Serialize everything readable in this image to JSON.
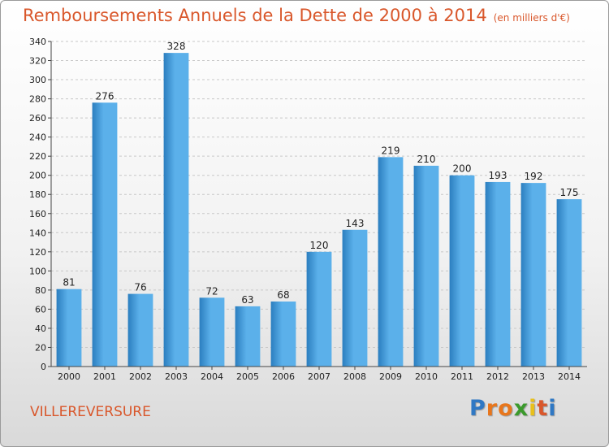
{
  "chart_data": {
    "type": "bar",
    "title": "Remboursements Annuels de la Dette de 2000 à 2014",
    "subtitle": "(en milliers d'€)",
    "categories": [
      "2000",
      "2001",
      "2002",
      "2003",
      "2004",
      "2005",
      "2006",
      "2007",
      "2008",
      "2009",
      "2010",
      "2011",
      "2012",
      "2013",
      "2014"
    ],
    "values": [
      81,
      276,
      76,
      328,
      72,
      63,
      68,
      120,
      143,
      219,
      210,
      200,
      193,
      192,
      175
    ],
    "ylim": [
      0,
      340
    ],
    "ytick_step": 20,
    "grid": true,
    "legend": "none",
    "colors": {
      "bar_light": "#5bb0ea",
      "bar_dark": "#2b7ebf",
      "text": "#222222",
      "axis": "#444444"
    }
  },
  "commune": "VILLEREVERSURE",
  "logo": {
    "letters": [
      "P",
      "r",
      "o",
      "x",
      "i",
      "t",
      "i"
    ],
    "colors": [
      "#2f78c4",
      "#e8761c",
      "#e8761c",
      "#3b9a2c",
      "#e8c01c",
      "#d9572b",
      "#2f78c4"
    ]
  }
}
